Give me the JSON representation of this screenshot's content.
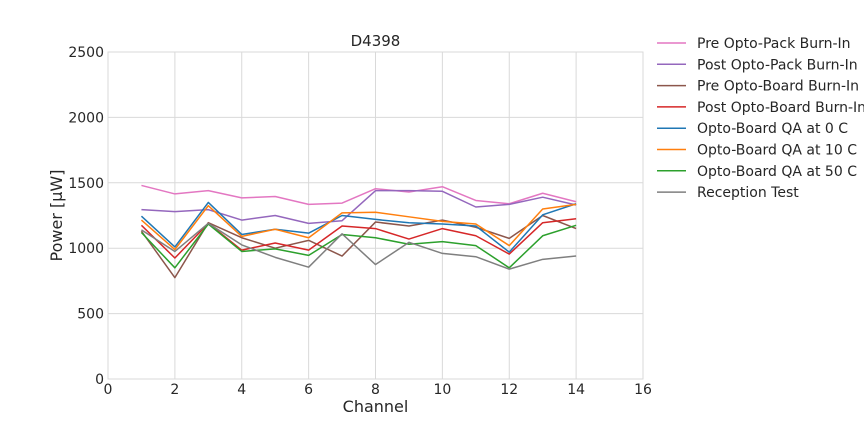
{
  "chart_data": {
    "type": "line",
    "title": "D4398",
    "xlabel": "Channel",
    "ylabel": "Power [μW]",
    "xlim": [
      0,
      16
    ],
    "ylim": [
      0,
      2500
    ],
    "xticks": [
      0,
      2,
      4,
      6,
      8,
      10,
      12,
      14,
      16
    ],
    "yticks": [
      0,
      500,
      1000,
      1500,
      2000,
      2500
    ],
    "grid": true,
    "legend_position": "outside-right",
    "x": [
      1,
      2,
      3,
      4,
      5,
      6,
      7,
      8,
      9,
      10,
      11,
      12,
      13,
      14
    ],
    "series": [
      {
        "name": "Pre Opto-Pack Burn-In",
        "color": "#e377c2",
        "values": [
          1480,
          1415,
          1440,
          1385,
          1395,
          1335,
          1345,
          1455,
          1430,
          1470,
          1365,
          1340,
          1420,
          1355
        ]
      },
      {
        "name": "Post Opto-Pack Burn-In",
        "color": "#9467bd",
        "values": [
          1295,
          1280,
          1295,
          1215,
          1250,
          1190,
          1210,
          1440,
          1440,
          1435,
          1315,
          1335,
          1390,
          1330
        ]
      },
      {
        "name": "Pre Opto-Board Burn-In",
        "color": "#8c564b",
        "values": [
          1130,
          775,
          1195,
          1080,
          1000,
          1060,
          940,
          1200,
          1170,
          1215,
          1160,
          1075,
          1250,
          1150
        ]
      },
      {
        "name": "Post Opto-Board Burn-In",
        "color": "#d62728",
        "values": [
          1175,
          925,
          1190,
          985,
          1040,
          985,
          1170,
          1150,
          1070,
          1150,
          1095,
          955,
          1195,
          1225
        ]
      },
      {
        "name": "Opto-Board QA at 0 C",
        "color": "#1f77b4",
        "values": [
          1245,
          1010,
          1350,
          1105,
          1145,
          1115,
          1250,
          1220,
          1195,
          1185,
          1170,
          970,
          1255,
          1340
        ]
      },
      {
        "name": "Opto-Board QA at 10 C",
        "color": "#ff7f0e",
        "values": [
          1215,
          990,
          1325,
          1090,
          1145,
          1080,
          1270,
          1275,
          1240,
          1205,
          1185,
          1020,
          1300,
          1335
        ]
      },
      {
        "name": "Opto-Board QA at 50 C",
        "color": "#2ca02c",
        "values": [
          1120,
          850,
          1185,
          975,
          995,
          945,
          1105,
          1080,
          1030,
          1050,
          1020,
          850,
          1095,
          1175
        ]
      },
      {
        "name": "Reception Test",
        "color": "#7f7f7f",
        "values": [
          1140,
          975,
          1190,
          1025,
          930,
          855,
          1110,
          875,
          1045,
          960,
          935,
          840,
          915,
          940
        ]
      }
    ]
  }
}
